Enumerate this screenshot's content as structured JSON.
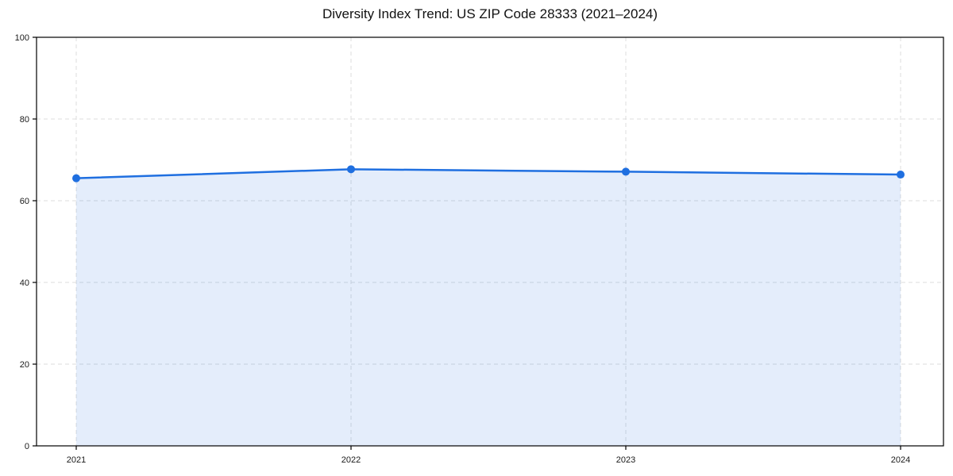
{
  "chart_data": {
    "type": "area",
    "title": "Diversity Index Trend: US ZIP Code 28333 (2021–2024)",
    "categories": [
      "2021",
      "2022",
      "2023",
      "2024"
    ],
    "series": [
      {
        "name": "Diversity Index",
        "values": [
          65.5,
          67.7,
          67.1,
          66.4
        ]
      }
    ],
    "xlabel": "",
    "ylabel": "",
    "ylim": [
      0,
      100
    ],
    "yticks": [
      0,
      20,
      40,
      60,
      80,
      100
    ],
    "grid": true,
    "grid_style": "dashed",
    "legend_position": "none",
    "line_color": "#1f6fe0",
    "marker_color": "#1f6fe0",
    "fill_color": "#1f6fe0",
    "fill_opacity": 0.12,
    "grid_color": "#dcdcdc",
    "spine_color": "#000000",
    "tick_label_color": "#1a1a1a"
  }
}
